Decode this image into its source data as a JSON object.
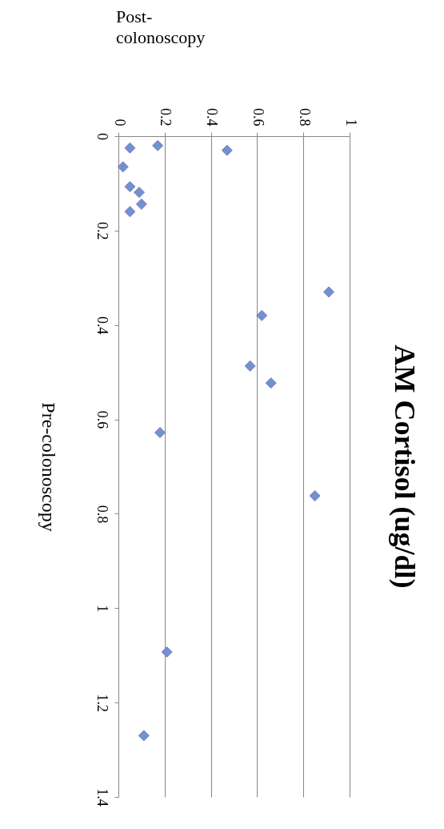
{
  "chart_data": {
    "type": "scatter",
    "title": "AM Cortisol (ug/dl)",
    "xlabel": "Post-colonoscopy",
    "ylabel": "Pre-colonoscopy",
    "x": [
      0.17,
      0.05,
      0.47,
      0.02,
      0.05,
      0.09,
      0.1,
      0.05,
      0.91,
      0.62,
      0.57,
      0.66,
      0.18,
      0.85,
      0.21,
      0.11
    ],
    "values": [
      0.02,
      0.025,
      0.03,
      0.065,
      0.107,
      0.119,
      0.144,
      0.16,
      0.33,
      0.38,
      0.487,
      0.523,
      0.628,
      0.762,
      1.093,
      1.27
    ],
    "color": "#6f93d1",
    "marker": "diamond",
    "xlim": [
      0,
      1
    ],
    "xticks": [
      0,
      0.2,
      0.4,
      0.6,
      0.8,
      1
    ],
    "ylim": [
      1.4,
      0
    ],
    "yticks": [
      0,
      0.2,
      0.4,
      0.6,
      0.8,
      1,
      1.2,
      1.4
    ],
    "grid": "x"
  }
}
